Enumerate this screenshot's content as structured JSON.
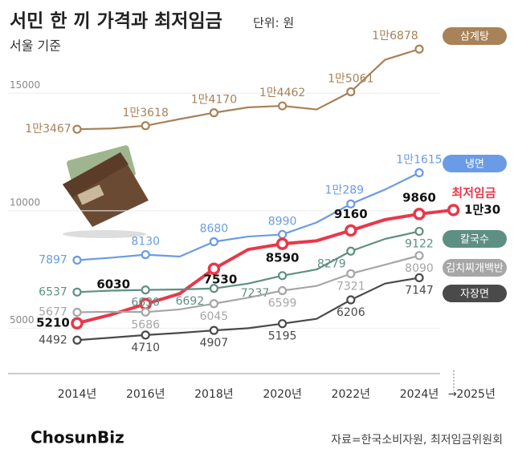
{
  "chart_data": {
    "type": "line",
    "title": "서민 한 끼 가격과 최저임금",
    "subtitle": "단위: 원",
    "note": "서울 기준",
    "source": "자료=한국소비자원, 최저임금위원회",
    "logo": "ChosunBiz",
    "categories": [
      "2014년",
      null,
      "2016년",
      null,
      "2018년",
      null,
      "2020년",
      null,
      "2022년",
      null,
      "2024년",
      "2025년"
    ],
    "ylim": [
      3000,
      17500
    ],
    "yticks": [
      5000,
      10000,
      15000
    ],
    "series": [
      {
        "name": "삼계탕",
        "color": "#a88258",
        "values": [
          13467,
          13500,
          13618,
          13900,
          14170,
          14400,
          14462,
          14308,
          15061,
          16423,
          16878,
          null
        ],
        "value_labels": [
          "1만3467",
          null,
          "1만3618",
          null,
          "1만4170",
          null,
          "1만4462",
          null,
          "1만5061",
          null,
          "1만6878",
          null
        ]
      },
      {
        "name": "냉면",
        "color": "#6a9be6",
        "values": [
          7897,
          8000,
          8130,
          8050,
          8680,
          8900,
          8990,
          9500,
          10289,
          10900,
          11615,
          null
        ],
        "value_labels": [
          "7897",
          null,
          "8130",
          null,
          "8680",
          null,
          "8990",
          null,
          "1만289",
          null,
          "1만1615",
          null
        ]
      },
      {
        "name": "최저임금",
        "color": "#e8384a",
        "values": [
          5210,
          5580,
          6030,
          6470,
          7530,
          8350,
          8590,
          8720,
          9160,
          9620,
          9860,
          10030
        ],
        "value_labels": [
          "5210",
          null,
          "6030",
          null,
          "7530",
          null,
          "8590",
          null,
          "9160",
          null,
          "9860",
          "1만30"
        ]
      },
      {
        "name": "칼국수",
        "color": "#5e8f83",
        "values": [
          6537,
          6600,
          6630,
          6650,
          6692,
          6900,
          7237,
          7500,
          8279,
          8800,
          9122,
          null
        ],
        "value_labels": [
          "6537",
          null,
          "6630",
          null,
          "6692",
          null,
          "7237",
          null,
          "8279",
          null,
          "9122",
          null
        ]
      },
      {
        "name": "김치찌개백반",
        "color": "#a6a6a6",
        "values": [
          5677,
          5700,
          5686,
          5800,
          6045,
          6300,
          6599,
          6800,
          7321,
          7700,
          8090,
          null
        ],
        "value_labels": [
          "5677",
          null,
          "5686",
          null,
          "6045",
          null,
          "6599",
          null,
          "7321",
          null,
          "8090",
          null
        ]
      },
      {
        "name": "자장면",
        "color": "#4a4a4a",
        "values": [
          4492,
          4600,
          4710,
          4800,
          4907,
          5000,
          5195,
          5400,
          6206,
          6900,
          7147,
          null
        ],
        "value_labels": [
          "4492",
          null,
          "4710",
          null,
          "4907",
          null,
          "5195",
          null,
          "6206",
          null,
          "7147",
          null
        ]
      }
    ]
  }
}
